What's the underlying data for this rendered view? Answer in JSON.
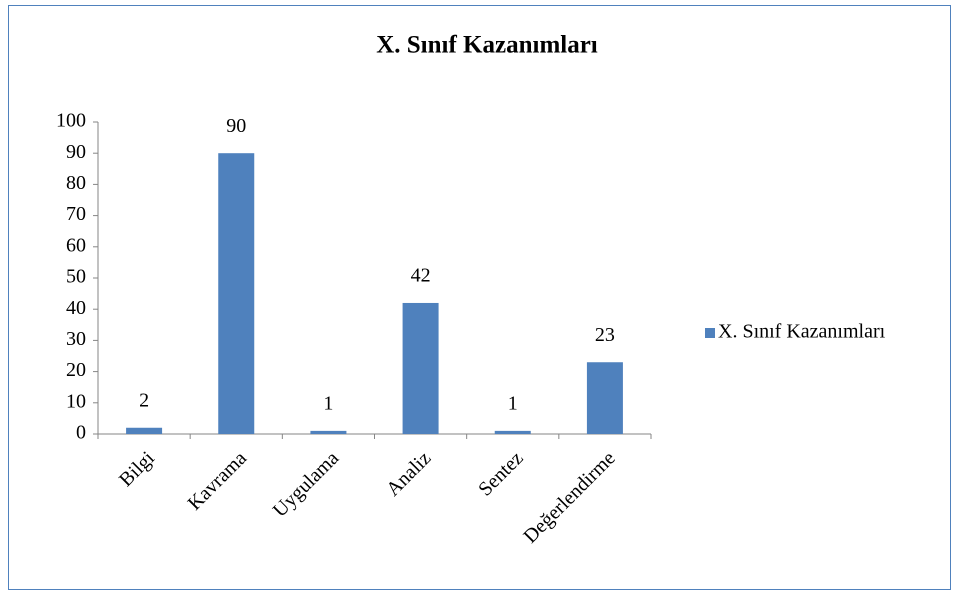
{
  "chart_data": {
    "type": "bar",
    "title": "X. Sınıf Kazanımları",
    "categories": [
      "Bilgi",
      "Kavrama",
      "Uygulama",
      "Analiz",
      "Sentez",
      "Değerlendirme"
    ],
    "series": [
      {
        "name": "X. Sınıf Kazanımları",
        "color": "#4f81bd",
        "values": [
          2,
          90,
          1,
          42,
          1,
          23
        ]
      }
    ],
    "ylim": [
      0,
      100
    ],
    "yticks": [
      0,
      10,
      20,
      30,
      40,
      50,
      60,
      70,
      80,
      90,
      100
    ],
    "grid": false,
    "legend": "right"
  }
}
